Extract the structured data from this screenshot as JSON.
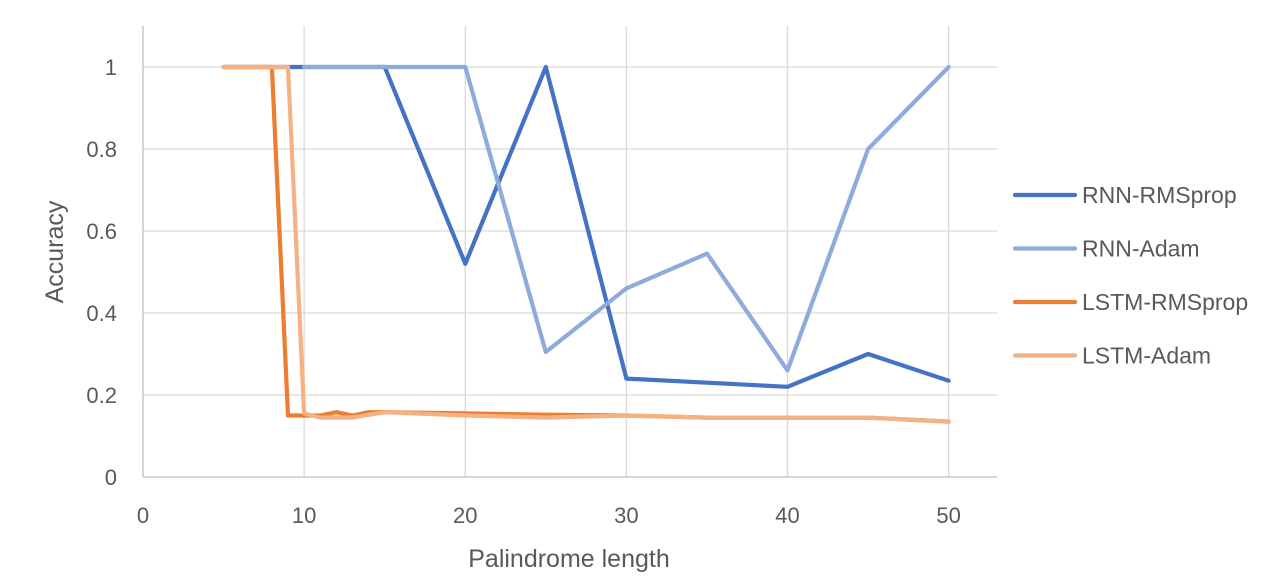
{
  "chart_data": {
    "type": "line",
    "title": "",
    "xlabel": "Palindrome length",
    "ylabel": "Accuracy",
    "xlim": [
      0,
      53
    ],
    "ylim": [
      0,
      1.1
    ],
    "xticks": [
      0,
      10,
      20,
      30,
      40,
      50
    ],
    "yticks": [
      0,
      0.2,
      0.4,
      0.6,
      0.8,
      1
    ],
    "xtick_labels": [
      "0",
      "10",
      "20",
      "30",
      "40",
      "50"
    ],
    "ytick_labels": [
      "0",
      "0.2",
      "0.4",
      "0.6",
      "0.8",
      "1"
    ],
    "grid": true,
    "legend_position": "right",
    "series": [
      {
        "name": "RNN-RMSprop",
        "color": "#4472C4",
        "points": [
          [
            5,
            1
          ],
          [
            10,
            1
          ],
          [
            15,
            1
          ],
          [
            20,
            0.52
          ],
          [
            25,
            1
          ],
          [
            30,
            0.24
          ],
          [
            35,
            0.23
          ],
          [
            40,
            0.22
          ],
          [
            45,
            0.3
          ],
          [
            50,
            0.235
          ]
        ]
      },
      {
        "name": "RNN-Adam",
        "color": "#8FAADC",
        "points": [
          [
            10,
            1
          ],
          [
            15,
            1
          ],
          [
            20,
            1
          ],
          [
            25,
            0.305
          ],
          [
            30,
            0.46
          ],
          [
            35,
            0.545
          ],
          [
            40,
            0.26
          ],
          [
            45,
            0.8
          ],
          [
            50,
            1
          ]
        ]
      },
      {
        "name": "LSTM-RMSprop",
        "color": "#ED7D31",
        "points": [
          [
            5,
            1
          ],
          [
            6,
            1
          ],
          [
            7,
            1
          ],
          [
            8,
            1
          ],
          [
            9,
            0.15
          ],
          [
            10,
            0.15
          ],
          [
            11,
            0.15
          ],
          [
            12,
            0.158
          ],
          [
            13,
            0.15
          ],
          [
            14,
            0.158
          ],
          [
            15,
            0.158
          ],
          [
            20,
            0.155
          ],
          [
            25,
            0.152
          ],
          [
            30,
            0.15
          ],
          [
            35,
            0.145
          ],
          [
            40,
            0.145
          ],
          [
            45,
            0.145
          ],
          [
            50,
            0.135
          ]
        ]
      },
      {
        "name": "LSTM-Adam",
        "color": "#F4B183",
        "points": [
          [
            5,
            1
          ],
          [
            6,
            1
          ],
          [
            7,
            1
          ],
          [
            8,
            1
          ],
          [
            9,
            1
          ],
          [
            10,
            0.155
          ],
          [
            11,
            0.145
          ],
          [
            12,
            0.145
          ],
          [
            13,
            0.145
          ],
          [
            15,
            0.158
          ],
          [
            20,
            0.15
          ],
          [
            25,
            0.145
          ],
          [
            30,
            0.15
          ],
          [
            35,
            0.145
          ],
          [
            40,
            0.145
          ],
          [
            45,
            0.145
          ],
          [
            50,
            0.135
          ]
        ]
      }
    ]
  }
}
